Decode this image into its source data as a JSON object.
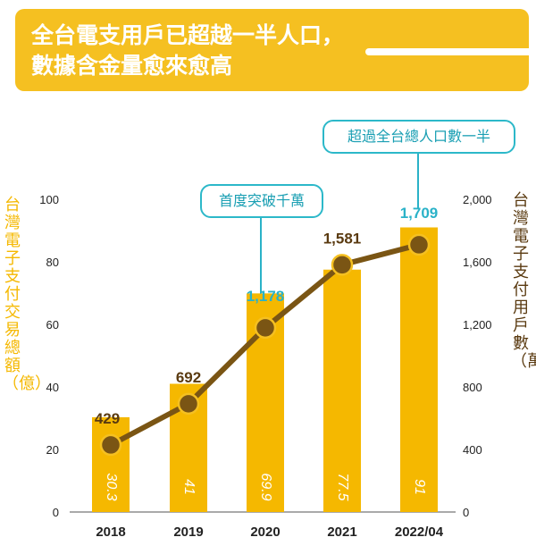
{
  "header": {
    "line1": "全台電支用戶已超越一半人口，",
    "line2": "數據含金量愈來愈高"
  },
  "callouts": {
    "first": "首度突破千萬",
    "second": "超過全台總人口數一半"
  },
  "chart_data": {
    "type": "bar+line",
    "categories": [
      "2018",
      "2019",
      "2020",
      "2021",
      "2022/04"
    ],
    "series": [
      {
        "name": "台灣電子支付交易總額（億）",
        "type": "bar",
        "axis": "left",
        "values": [
          30.3,
          41,
          69.9,
          77.5,
          91
        ],
        "labels": [
          "30.3",
          "41",
          "69.9",
          "77.5",
          "91"
        ]
      },
      {
        "name": "台灣電子支付用戶數（萬）",
        "type": "line",
        "axis": "right",
        "values": [
          429,
          692,
          1178,
          1581,
          1709
        ],
        "labels": [
          "429",
          "692",
          "1,178",
          "1,581",
          "1,709"
        ]
      }
    ],
    "ylabel_left": "台灣電子支付交易總額（億）",
    "ylabel_right": "台灣電子支付用戶數（萬）",
    "ylim_left": [
      0,
      100
    ],
    "ylim_right": [
      0,
      2000
    ],
    "yticks_left": [
      "0",
      "20",
      "40",
      "60",
      "80",
      "100"
    ],
    "yticks_right": [
      "0",
      "400",
      "800",
      "1,200",
      "1,600",
      "2,000"
    ],
    "highlight_indices": [
      2,
      4
    ],
    "colors": {
      "bar": "#f5b800",
      "line": "#7a5514",
      "marker": "#7a5514",
      "highlight": "#2ab2c8",
      "label": "#5a3a10"
    }
  }
}
